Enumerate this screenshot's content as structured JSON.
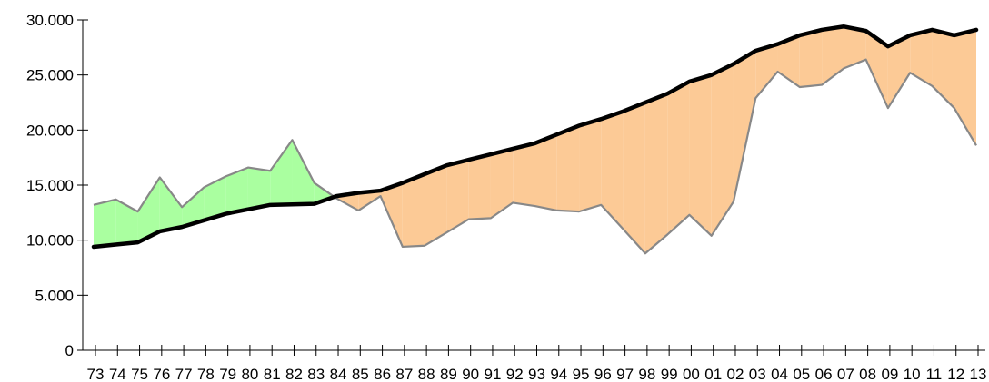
{
  "chart_data": {
    "type": "area",
    "title": "",
    "xlabel": "",
    "ylabel": "",
    "ylim": [
      0,
      30000
    ],
    "y_ticks": [
      0,
      5000,
      10000,
      15000,
      20000,
      25000,
      30000
    ],
    "y_tick_labels": [
      "0",
      "5.000",
      "10.000",
      "15.000",
      "20.000",
      "25.000",
      "30.000"
    ],
    "grid": false,
    "legend": "none",
    "categories": [
      "73",
      "74",
      "75",
      "76",
      "77",
      "78",
      "79",
      "80",
      "81",
      "82",
      "83",
      "84",
      "85",
      "86",
      "87",
      "88",
      "89",
      "90",
      "91",
      "92",
      "93",
      "94",
      "95",
      "96",
      "97",
      "98",
      "99",
      "00",
      "01",
      "02",
      "03",
      "04",
      "05",
      "06",
      "07",
      "08",
      "09",
      "10",
      "11",
      "12",
      "13"
    ],
    "series": [
      {
        "role": "thick-line",
        "color": "#000000",
        "values": [
          9400,
          9600,
          9800,
          10800,
          11200,
          11800,
          12400,
          12800,
          13200,
          13250,
          13300,
          14000,
          14300,
          14500,
          15200,
          16000,
          16800,
          17300,
          17800,
          18300,
          18800,
          19600,
          20400,
          21000,
          21700,
          22500,
          23300,
          24400,
          25000,
          26000,
          27200,
          27800,
          28600,
          29100,
          29400,
          29000,
          27600,
          28600,
          29100,
          28600,
          29100
        ]
      },
      {
        "role": "thin-line",
        "color": "#888888",
        "values": [
          13200,
          13700,
          12600,
          15700,
          13000,
          14800,
          15800,
          16600,
          16300,
          19100,
          15200,
          13800,
          12700,
          14000,
          9400,
          9500,
          10700,
          11900,
          12000,
          13400,
          13100,
          12700,
          12600,
          13200,
          11000,
          8800,
          10500,
          12300,
          10400,
          13500,
          22900,
          25300,
          23900,
          24100,
          25600,
          26400,
          22000,
          25200,
          24000,
          22000,
          18600
        ]
      }
    ],
    "fill_colors": {
      "thin_above": "#aaffa0",
      "thick_above": "#fcca96"
    }
  }
}
